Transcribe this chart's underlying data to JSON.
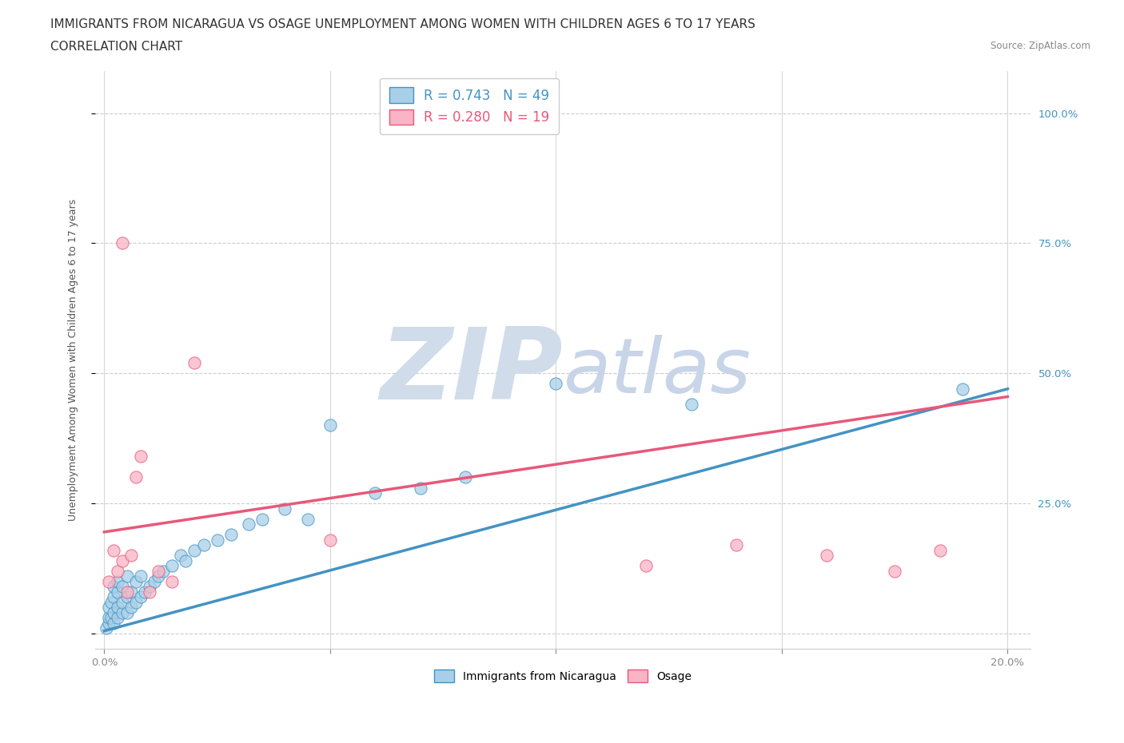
{
  "title_line1": "IMMIGRANTS FROM NICARAGUA VS OSAGE UNEMPLOYMENT AMONG WOMEN WITH CHILDREN AGES 6 TO 17 YEARS",
  "title_line2": "CORRELATION CHART",
  "source_text": "Source: ZipAtlas.com",
  "ylabel": "Unemployment Among Women with Children Ages 6 to 17 years",
  "xlim": [
    -0.002,
    0.205
  ],
  "ylim": [
    -0.03,
    1.08
  ],
  "xticks": [
    0.0,
    0.05,
    0.1,
    0.15,
    0.2
  ],
  "xtick_labels": [
    "0.0%",
    "",
    "",
    "",
    "20.0%"
  ],
  "yticks": [
    0.0,
    0.25,
    0.5,
    0.75,
    1.0
  ],
  "ytick_labels_right": [
    "",
    "25.0%",
    "50.0%",
    "75.0%",
    "100.0%"
  ],
  "blue_color": "#a8cfe8",
  "blue_color_line": "#4393c3",
  "pink_color": "#f9b4c5",
  "pink_color_line": "#e8587a",
  "blue_R": 0.743,
  "blue_N": 49,
  "pink_R": 0.28,
  "pink_N": 19,
  "blue_scatter_x": [
    0.0005,
    0.001,
    0.001,
    0.001,
    0.0015,
    0.0015,
    0.002,
    0.002,
    0.002,
    0.002,
    0.003,
    0.003,
    0.003,
    0.003,
    0.004,
    0.004,
    0.004,
    0.005,
    0.005,
    0.005,
    0.006,
    0.006,
    0.007,
    0.007,
    0.008,
    0.008,
    0.009,
    0.01,
    0.011,
    0.012,
    0.013,
    0.015,
    0.017,
    0.018,
    0.02,
    0.022,
    0.025,
    0.028,
    0.032,
    0.035,
    0.04,
    0.045,
    0.05,
    0.06,
    0.07,
    0.08,
    0.1,
    0.13,
    0.19
  ],
  "blue_scatter_y": [
    0.01,
    0.02,
    0.03,
    0.05,
    0.03,
    0.06,
    0.02,
    0.04,
    0.07,
    0.09,
    0.03,
    0.05,
    0.08,
    0.1,
    0.04,
    0.06,
    0.09,
    0.04,
    0.07,
    0.11,
    0.05,
    0.08,
    0.06,
    0.1,
    0.07,
    0.11,
    0.08,
    0.09,
    0.1,
    0.11,
    0.12,
    0.13,
    0.15,
    0.14,
    0.16,
    0.17,
    0.18,
    0.19,
    0.21,
    0.22,
    0.24,
    0.22,
    0.4,
    0.27,
    0.28,
    0.3,
    0.48,
    0.44,
    0.47
  ],
  "pink_scatter_x": [
    0.001,
    0.002,
    0.003,
    0.004,
    0.004,
    0.005,
    0.006,
    0.007,
    0.008,
    0.01,
    0.012,
    0.015,
    0.02,
    0.05,
    0.12,
    0.14,
    0.16,
    0.175,
    0.185
  ],
  "pink_scatter_y": [
    0.1,
    0.16,
    0.12,
    0.14,
    0.75,
    0.08,
    0.15,
    0.3,
    0.34,
    0.08,
    0.12,
    0.1,
    0.52,
    0.18,
    0.13,
    0.17,
    0.15,
    0.12,
    0.16
  ],
  "blue_trend_x0": 0.0,
  "blue_trend_y0": 0.005,
  "blue_trend_x1": 0.2,
  "blue_trend_y1": 0.47,
  "pink_trend_x0": 0.0,
  "pink_trend_y0": 0.195,
  "pink_trend_x1": 0.2,
  "pink_trend_y1": 0.455,
  "watermark_zip": "ZIP",
  "watermark_atlas": "atlas",
  "watermark_color": "#d0dcea",
  "grid_color": "#cccccc",
  "background_color": "#ffffff",
  "title_fontsize": 11,
  "axis_label_fontsize": 9,
  "tick_fontsize": 9.5,
  "legend_fontsize": 12
}
